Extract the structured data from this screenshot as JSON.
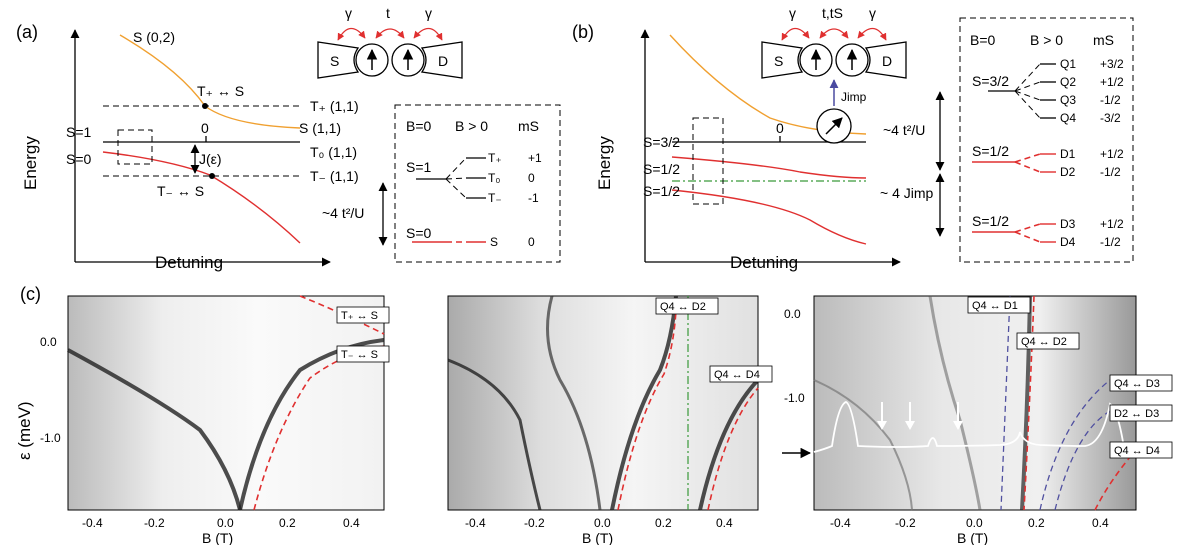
{
  "panels": {
    "a": "(a)",
    "b": "(b)",
    "c": "(c)"
  },
  "panel_a": {
    "ylabel": "Energy",
    "xlabel": "Detuning",
    "s02": "S (0,2)",
    "tplus_s": "T₊ ↔ S",
    "tminus_s": "T₋ ↔ S",
    "tplus11": "T₊ (1,1)",
    "s11": "S (1,1)",
    "t0_11": "T₀ (1,1)",
    "tminus11": "T₋ (1,1)",
    "s1": "S=1",
    "s0": "S=0",
    "zero": "0",
    "jeps": "J(ε)",
    "gap": "~4 t²/U",
    "dot_s": "S",
    "dot_d": "D",
    "gamma": "γ",
    "t": "t",
    "box": {
      "b0": "B=0",
      "bpos": "B > 0",
      "ms": "mS",
      "s1": "S=1",
      "s0": "S=0",
      "levels": [
        {
          "name": "T₊",
          "ms": "+1"
        },
        {
          "name": "T₀",
          "ms": "0"
        },
        {
          "name": "T₋",
          "ms": "-1"
        },
        {
          "name": "S",
          "ms": "0"
        }
      ]
    }
  },
  "panel_b": {
    "ylabel": "Energy",
    "xlabel": "Detuning",
    "s32": "S=3/2",
    "s12a": "S=1/2",
    "s12b": "S=1/2",
    "zero": "0",
    "gap1": "~4 t²/U",
    "gap2": "~ 4 Jimp",
    "jimp": "Jimp",
    "dot_s": "S",
    "dot_d": "D",
    "gamma": "γ",
    "tts": "t,tS",
    "box": {
      "b0": "B=0",
      "bpos": "B > 0",
      "ms": "mS",
      "s32": "S=3/2",
      "s12a": "S=1/2",
      "s12b": "S=1/2",
      "quartet": [
        {
          "name": "Q1",
          "ms": "+3/2"
        },
        {
          "name": "Q2",
          "ms": "+1/2"
        },
        {
          "name": "Q3",
          "ms": "-1/2"
        },
        {
          "name": "Q4",
          "ms": "-3/2"
        }
      ],
      "doublet1": [
        {
          "name": "D1",
          "ms": "+1/2"
        },
        {
          "name": "D2",
          "ms": "-1/2"
        }
      ],
      "doublet2": [
        {
          "name": "D3",
          "ms": "+1/2"
        },
        {
          "name": "D4",
          "ms": "-1/2"
        }
      ]
    }
  },
  "panel_c": {
    "ylabel": "ε (meV)",
    "xlabel": "B (T)",
    "yticks1": [
      "0.0",
      "-1.0"
    ],
    "yticks3": [
      "0.0",
      "-1.0"
    ],
    "xticks": [
      "-0.4",
      "-0.2",
      "0.0",
      "0.2",
      "0.4"
    ],
    "labels1": [
      "T₊ ↔ S",
      "T₋ ↔ S"
    ],
    "labels2": [
      "Q4 ↔ D2",
      "Q4 ↔ D4"
    ],
    "labels3": [
      "Q4 ↔ D1",
      "Q4 ↔ D2",
      "Q4 ↔ D3",
      "D2 ↔ D3",
      "Q4 ↔ D4"
    ]
  },
  "colors": {
    "orange": "#f0a030",
    "red": "#e03030",
    "blue": "#5050a0",
    "green": "#3a9a3a"
  }
}
